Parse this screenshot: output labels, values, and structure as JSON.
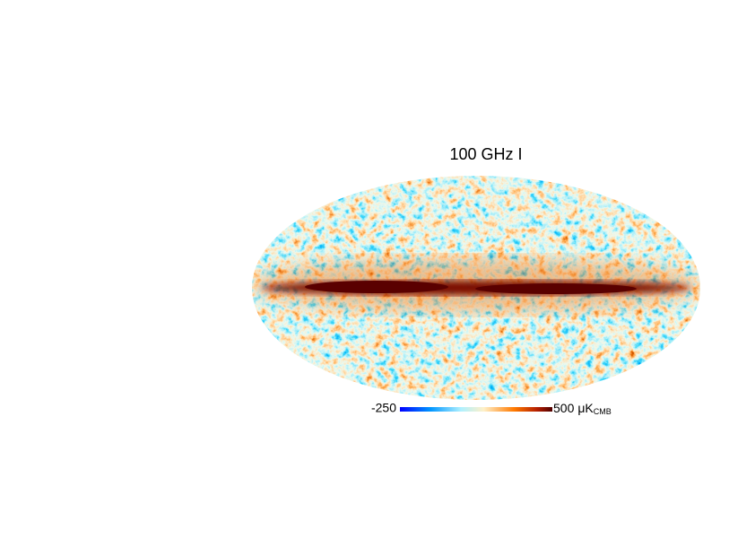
{
  "title": "100 GHz I",
  "colorbar": {
    "min": -250,
    "max": 500,
    "unit": "μK",
    "unit_sub": "CMB"
  }
}
